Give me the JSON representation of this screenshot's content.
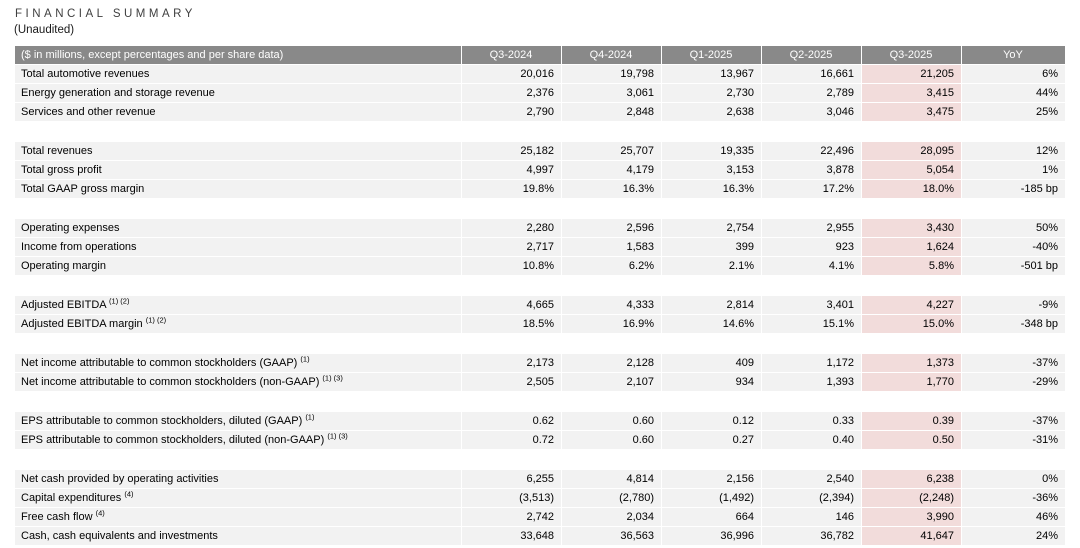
{
  "title": "FINANCIAL SUMMARY",
  "subtitle": "(Unaudited)",
  "colors": {
    "header_bg": "#898989",
    "header_text": "#ffffff",
    "row_bg": "#f2f2f2",
    "highlight_column_bg": "#f2dcdb",
    "page_bg": "#ffffff"
  },
  "table": {
    "header": [
      "($ in millions, except percentages and per share data)",
      "Q3-2024",
      "Q4-2024",
      "Q1-2025",
      "Q2-2025",
      "Q3-2025",
      "YoY"
    ],
    "highlighted_column": "Q3-2025",
    "groups": [
      {
        "rows": [
          {
            "label": "Total automotive revenues",
            "sup": "",
            "values": [
              "20,016",
              "19,798",
              "13,967",
              "16,661",
              "21,205",
              "6%"
            ]
          },
          {
            "label": "Energy generation and storage revenue",
            "sup": "",
            "values": [
              "2,376",
              "3,061",
              "2,730",
              "2,789",
              "3,415",
              "44%"
            ]
          },
          {
            "label": "Services and other revenue",
            "sup": "",
            "values": [
              "2,790",
              "2,848",
              "2,638",
              "3,046",
              "3,475",
              "25%"
            ]
          }
        ]
      },
      {
        "rows": [
          {
            "label": "Total revenues",
            "sup": "",
            "values": [
              "25,182",
              "25,707",
              "19,335",
              "22,496",
              "28,095",
              "12%"
            ]
          },
          {
            "label": "Total gross profit",
            "sup": "",
            "values": [
              "4,997",
              "4,179",
              "3,153",
              "3,878",
              "5,054",
              "1%"
            ]
          },
          {
            "label": "Total GAAP gross margin",
            "sup": "",
            "values": [
              "19.8%",
              "16.3%",
              "16.3%",
              "17.2%",
              "18.0%",
              "-185 bp"
            ]
          }
        ]
      },
      {
        "rows": [
          {
            "label": "Operating expenses",
            "sup": "",
            "values": [
              "2,280",
              "2,596",
              "2,754",
              "2,955",
              "3,430",
              "50%"
            ]
          },
          {
            "label": "Income from operations",
            "sup": "",
            "values": [
              "2,717",
              "1,583",
              "399",
              "923",
              "1,624",
              "-40%"
            ]
          },
          {
            "label": "Operating margin",
            "sup": "",
            "values": [
              "10.8%",
              "6.2%",
              "2.1%",
              "4.1%",
              "5.8%",
              "-501 bp"
            ]
          }
        ]
      },
      {
        "rows": [
          {
            "label": "Adjusted EBITDA",
            "sup": "(1) (2)",
            "values": [
              "4,665",
              "4,333",
              "2,814",
              "3,401",
              "4,227",
              "-9%"
            ]
          },
          {
            "label": "Adjusted EBITDA margin",
            "sup": "(1) (2)",
            "values": [
              "18.5%",
              "16.9%",
              "14.6%",
              "15.1%",
              "15.0%",
              "-348 bp"
            ]
          }
        ]
      },
      {
        "rows": [
          {
            "label": "Net income attributable to common stockholders (GAAP)",
            "sup": "(1)",
            "values": [
              "2,173",
              "2,128",
              "409",
              "1,172",
              "1,373",
              "-37%"
            ]
          },
          {
            "label": "Net income attributable to common stockholders (non-GAAP)",
            "sup": "(1) (3)",
            "values": [
              "2,505",
              "2,107",
              "934",
              "1,393",
              "1,770",
              "-29%"
            ]
          }
        ]
      },
      {
        "rows": [
          {
            "label": "EPS attributable to common stockholders, diluted (GAAP)",
            "sup": "(1)",
            "values": [
              "0.62",
              "0.60",
              "0.12",
              "0.33",
              "0.39",
              "-37%"
            ]
          },
          {
            "label": "EPS attributable to common stockholders, diluted (non-GAAP)",
            "sup": "(1) (3)",
            "values": [
              "0.72",
              "0.60",
              "0.27",
              "0.40",
              "0.50",
              "-31%"
            ]
          }
        ]
      },
      {
        "rows": [
          {
            "label": "Net cash provided by operating activities",
            "sup": "",
            "values": [
              "6,255",
              "4,814",
              "2,156",
              "2,540",
              "6,238",
              "0%"
            ]
          },
          {
            "label": "Capital expenditures",
            "sup": "(4)",
            "values": [
              "(3,513)",
              "(2,780)",
              "(1,492)",
              "(2,394)",
              "(2,248)",
              "-36%"
            ]
          },
          {
            "label": "Free cash flow",
            "sup": "(4)",
            "values": [
              "2,742",
              "2,034",
              "664",
              "146",
              "3,990",
              "46%"
            ]
          },
          {
            "label": "Cash, cash equivalents and investments",
            "sup": "",
            "values": [
              "33,648",
              "36,563",
              "36,996",
              "36,782",
              "41,647",
              "24%"
            ]
          }
        ]
      }
    ]
  }
}
